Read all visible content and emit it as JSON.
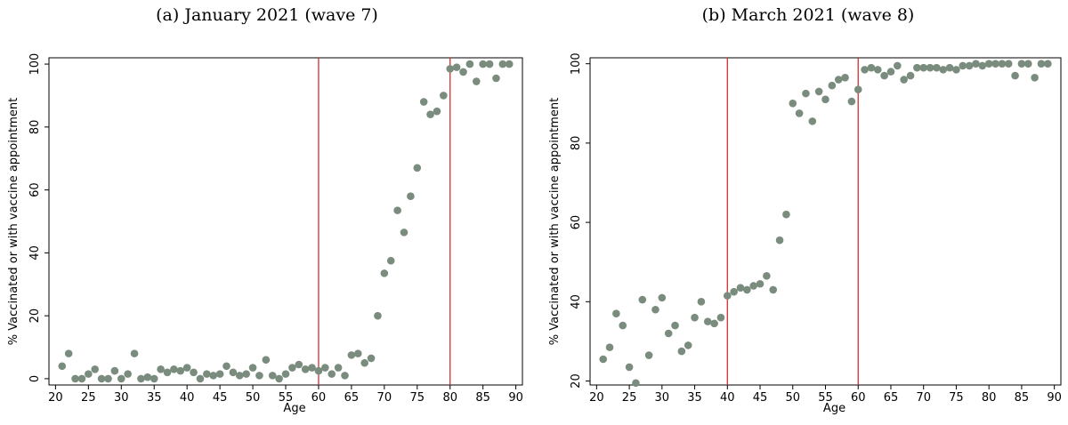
{
  "chart_data": [
    {
      "type": "scatter",
      "title": "(a) January 2021 (wave 7)",
      "xlabel": "Age",
      "ylabel": "% Vaccinated or with vaccine appointment",
      "xlim": [
        19,
        91
      ],
      "ylim": [
        -2,
        102
      ],
      "xticks": [
        20,
        25,
        30,
        35,
        40,
        45,
        50,
        55,
        60,
        65,
        70,
        75,
        80,
        85,
        90
      ],
      "yticks": [
        0,
        20,
        40,
        60,
        80,
        100
      ],
      "vlines": [
        60,
        80
      ],
      "colors": {
        "point": "#7a8c7d",
        "vline": "#d62f2f"
      },
      "x": [
        21,
        22,
        23,
        24,
        25,
        26,
        27,
        28,
        29,
        30,
        31,
        32,
        33,
        34,
        35,
        36,
        37,
        38,
        39,
        40,
        41,
        42,
        43,
        44,
        45,
        46,
        47,
        48,
        49,
        50,
        51,
        52,
        53,
        54,
        55,
        56,
        57,
        58,
        59,
        60,
        61,
        62,
        63,
        64,
        65,
        66,
        67,
        68,
        69,
        70,
        71,
        72,
        73,
        74,
        75,
        76,
        77,
        78,
        79,
        80,
        81,
        82,
        83,
        84,
        85,
        86,
        87,
        88,
        89
      ],
      "y": [
        4,
        8,
        0,
        0,
        1.5,
        3,
        0,
        0,
        2.5,
        0,
        1.5,
        8,
        0,
        0.5,
        0,
        3,
        2,
        3,
        2.5,
        3.5,
        2,
        0,
        1.5,
        1,
        1.5,
        4,
        2,
        1,
        1.5,
        3.5,
        1,
        6,
        1,
        0,
        1.5,
        3.5,
        4.5,
        3,
        3.5,
        2.5,
        3.5,
        1.5,
        3.5,
        1,
        7.5,
        8,
        5,
        6.5,
        20,
        33.5,
        37.5,
        53.5,
        46.5,
        58,
        67,
        88,
        84,
        85,
        90,
        98.5,
        99,
        97.5,
        100,
        94.5,
        100,
        100,
        95.5,
        100,
        100
      ]
    },
    {
      "type": "scatter",
      "title": "(b) March 2021 (wave 8)",
      "xlabel": "Age",
      "ylabel": "% Vaccinated or with vaccine appointment",
      "xlim": [
        19,
        91
      ],
      "ylim": [
        19,
        101.5
      ],
      "xticks": [
        20,
        25,
        30,
        35,
        40,
        45,
        50,
        55,
        60,
        65,
        70,
        75,
        80,
        85,
        90
      ],
      "yticks": [
        20,
        40,
        60,
        80,
        100
      ],
      "vlines": [
        40,
        60
      ],
      "colors": {
        "point": "#7a8c7d",
        "vline": "#d62f2f"
      },
      "x": [
        21,
        22,
        23,
        24,
        25,
        26,
        27,
        28,
        29,
        30,
        31,
        32,
        33,
        34,
        35,
        36,
        37,
        38,
        39,
        40,
        41,
        42,
        43,
        44,
        45,
        46,
        47,
        48,
        49,
        50,
        51,
        52,
        53,
        54,
        55,
        56,
        57,
        58,
        59,
        60,
        61,
        62,
        63,
        64,
        65,
        66,
        67,
        68,
        69,
        70,
        71,
        72,
        73,
        74,
        75,
        76,
        77,
        78,
        79,
        80,
        81,
        82,
        83,
        84,
        85,
        86,
        87,
        88,
        89
      ],
      "y": [
        25.5,
        28.5,
        37,
        34,
        23.5,
        19.5,
        40.5,
        26.5,
        38,
        41,
        32,
        34,
        27.5,
        29,
        36,
        40,
        35,
        34.5,
        36,
        41.5,
        42.5,
        43.5,
        43,
        44,
        44.5,
        46.5,
        43,
        55.5,
        62,
        90,
        87.5,
        92.5,
        85.5,
        93,
        91,
        94.5,
        96,
        96.5,
        90.5,
        93.5,
        98.5,
        99,
        98.5,
        97,
        98,
        99.5,
        96,
        97,
        99,
        99,
        99,
        99,
        98.5,
        99,
        98.5,
        99.5,
        99.5,
        100,
        99.5,
        100,
        100,
        100,
        100,
        97,
        100,
        100,
        96.5,
        100,
        100
      ]
    }
  ]
}
